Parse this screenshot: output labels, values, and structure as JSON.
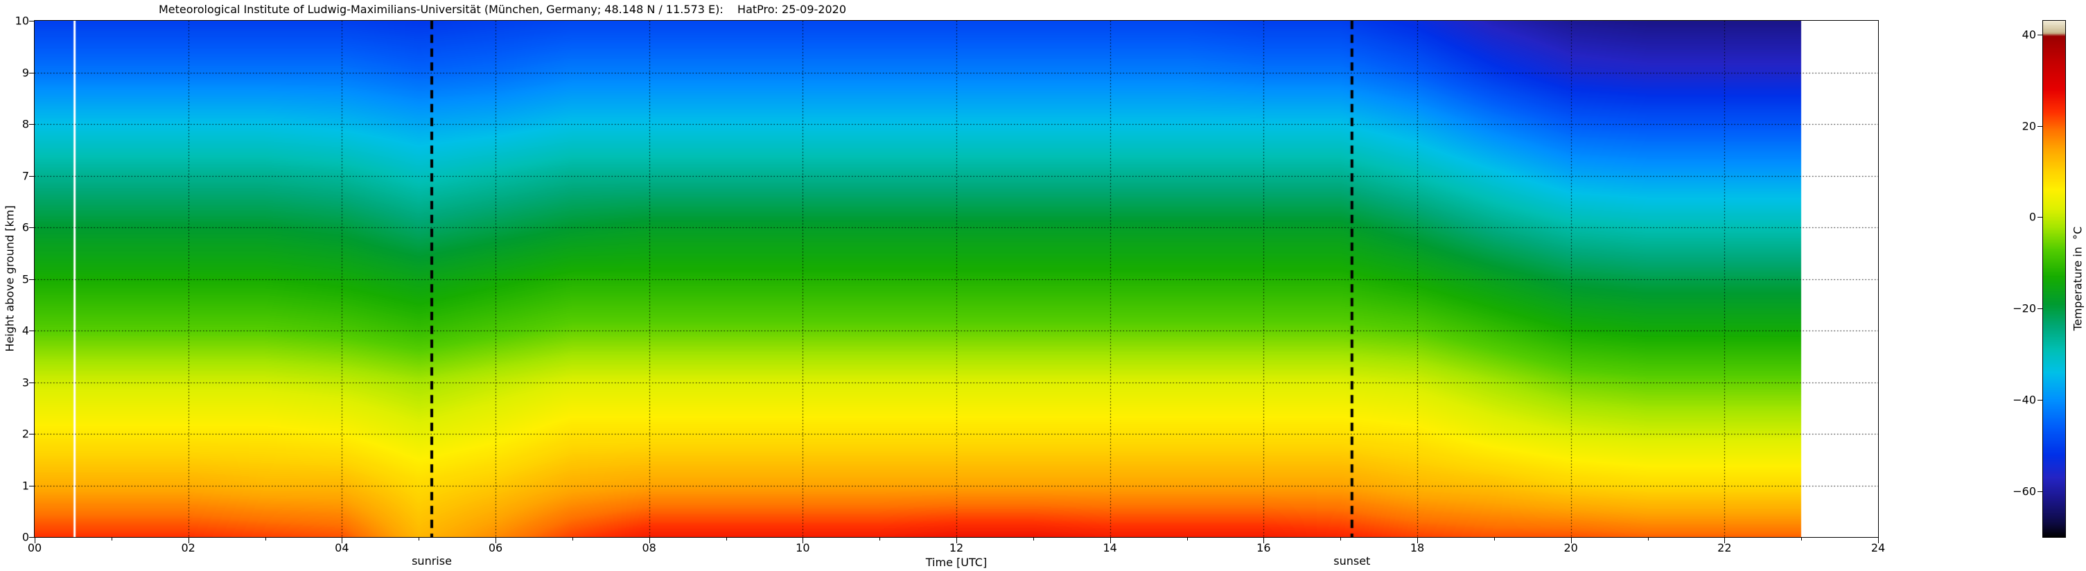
{
  "title": "Meteorological Institute of Ludwig-Maximilians-Universität (München, Germany; 48.148 N / 11.573 E):    HatPro: 25-09-2020",
  "axes": {
    "x_label": "Time [UTC]",
    "y_label": "Height above ground [km]",
    "x_range": [
      0,
      24
    ],
    "y_range": [
      0,
      10
    ],
    "x_tick_values": [
      0,
      2,
      4,
      6,
      8,
      10,
      12,
      14,
      16,
      18,
      20,
      22,
      24
    ],
    "x_tick_labels": [
      "00",
      "02",
      "04",
      "06",
      "08",
      "10",
      "12",
      "14",
      "16",
      "18",
      "20",
      "22",
      "24"
    ],
    "y_tick_values": [
      0,
      1,
      2,
      3,
      4,
      5,
      6,
      7,
      8,
      9,
      10
    ],
    "y_tick_labels": [
      "0",
      "1",
      "2",
      "3",
      "4",
      "5",
      "6",
      "7",
      "8",
      "9",
      "10"
    ],
    "grid": "dotted"
  },
  "colorbar": {
    "label": "Temperature in  °C",
    "range": [
      -70,
      43
    ],
    "tick_values": [
      40,
      20,
      0,
      -20,
      -40,
      -60
    ],
    "tick_labels": [
      "40",
      "20",
      "0",
      "−20",
      "−40",
      "−60"
    ]
  },
  "annotations": {
    "sunrise": {
      "label": "sunrise",
      "time": 5.17
    },
    "sunset": {
      "label": "sunset",
      "time": 17.15
    },
    "data_gap_time": 0.52
  },
  "chart_data": {
    "type": "heatmap",
    "title": "Temperature time-height cross-section, HatPro microwave radiometer, 25-09-2020",
    "xlabel": "Time [UTC]",
    "ylabel": "Height above ground [km]",
    "x_valid_max": 23,
    "x": [
      0,
      1,
      2,
      3,
      4,
      5,
      6,
      7,
      8,
      9,
      10,
      11,
      12,
      13,
      14,
      15,
      16,
      17,
      18,
      19,
      20,
      21,
      22,
      23
    ],
    "y": [
      0,
      1,
      2,
      3,
      4,
      5,
      6,
      7,
      8,
      9,
      10
    ],
    "temperatures": [
      [
        23,
        14,
        7,
        1,
        -7,
        -13,
        -19,
        -26,
        -34,
        -43,
        -50
      ],
      [
        23,
        14,
        7,
        1,
        -7,
        -13,
        -19,
        -26,
        -34,
        -43,
        -50
      ],
      [
        23,
        14,
        7,
        1,
        -7,
        -13,
        -19,
        -26,
        -34,
        -43,
        -50
      ],
      [
        22,
        13,
        7,
        1,
        -7,
        -13,
        -19,
        -26,
        -34,
        -43,
        -50
      ],
      [
        21,
        13,
        6,
        0,
        -8,
        -14,
        -20,
        -27,
        -35,
        -43,
        -50
      ],
      [
        13,
        9,
        3,
        -2,
        -10,
        -16,
        -23,
        -30,
        -37,
        -45,
        -51
      ],
      [
        17,
        11,
        5,
        0,
        -8,
        -14,
        -21,
        -28,
        -36,
        -44,
        -50
      ],
      [
        22,
        14,
        8,
        2,
        -6,
        -12,
        -19,
        -26,
        -34,
        -42,
        -49
      ],
      [
        25,
        15,
        8,
        2,
        -6,
        -12,
        -18,
        -26,
        -34,
        -42,
        -49
      ],
      [
        25,
        15,
        8,
        2,
        -6,
        -12,
        -18,
        -26,
        -34,
        -42,
        -49
      ],
      [
        25,
        15,
        8,
        2,
        -6,
        -12,
        -18,
        -26,
        -34,
        -42,
        -49
      ],
      [
        25,
        15,
        8,
        2,
        -6,
        -12,
        -18,
        -26,
        -34,
        -42,
        -49
      ],
      [
        26,
        15,
        8,
        2,
        -6,
        -12,
        -18,
        -26,
        -34,
        -42,
        -49
      ],
      [
        26,
        15,
        8,
        2,
        -6,
        -12,
        -18,
        -26,
        -34,
        -42,
        -49
      ],
      [
        25,
        15,
        8,
        2,
        -6,
        -12,
        -18,
        -26,
        -34,
        -42,
        -49
      ],
      [
        25,
        15,
        8,
        2,
        -6,
        -12,
        -18,
        -26,
        -34,
        -42,
        -49
      ],
      [
        25,
        15,
        8,
        2,
        -6,
        -12,
        -18,
        -26,
        -34,
        -43,
        -50
      ],
      [
        24,
        15,
        8,
        2,
        -6,
        -12,
        -18,
        -26,
        -34,
        -43,
        -50
      ],
      [
        22,
        13,
        7,
        1,
        -7,
        -14,
        -21,
        -29,
        -37,
        -46,
        -53
      ],
      [
        21,
        12,
        4,
        -2,
        -10,
        -17,
        -25,
        -33,
        -42,
        -51,
        -58
      ],
      [
        21,
        10,
        2,
        -5,
        -13,
        -20,
        -28,
        -37,
        -46,
        -55,
        -61
      ],
      [
        20,
        9,
        1,
        -6,
        -14,
        -21,
        -29,
        -38,
        -47,
        -56,
        -62
      ],
      [
        20,
        9,
        1,
        -6,
        -14,
        -21,
        -29,
        -38,
        -47,
        -56,
        -62
      ],
      [
        20,
        9,
        1,
        -6,
        -14,
        -21,
        -29,
        -38,
        -47,
        -56,
        -62
      ]
    ],
    "colormap": [
      [
        43,
        "#f2ecd8"
      ],
      [
        40.3,
        "#c8b88e"
      ],
      [
        39.7,
        "#9a0000"
      ],
      [
        34,
        "#c40000"
      ],
      [
        28,
        "#e60000"
      ],
      [
        23,
        "#ff3000"
      ],
      [
        19,
        "#ff7300"
      ],
      [
        15,
        "#ffa400"
      ],
      [
        10,
        "#ffd200"
      ],
      [
        6,
        "#fff000"
      ],
      [
        2,
        "#dff000"
      ],
      [
        -2,
        "#a8e600"
      ],
      [
        -7,
        "#55cd00"
      ],
      [
        -13,
        "#17ad00"
      ],
      [
        -19,
        "#009b30"
      ],
      [
        -24,
        "#00a878"
      ],
      [
        -29,
        "#00bfb4"
      ],
      [
        -34,
        "#00c0e8"
      ],
      [
        -40,
        "#0090ff"
      ],
      [
        -46,
        "#005cfa"
      ],
      [
        -52,
        "#0030e8"
      ],
      [
        -57,
        "#2424c4"
      ],
      [
        -62,
        "#1a1588"
      ],
      [
        -67,
        "#0d0a42"
      ],
      [
        -70,
        "#000000"
      ]
    ],
    "legend": "none",
    "annotations": [
      "sunrise dashed line at 05:10 UTC",
      "sunset dashed line at 17:09 UTC",
      "white vertical data-gap line near 00:31 UTC",
      "no data after 23:00 UTC (white region)"
    ]
  }
}
